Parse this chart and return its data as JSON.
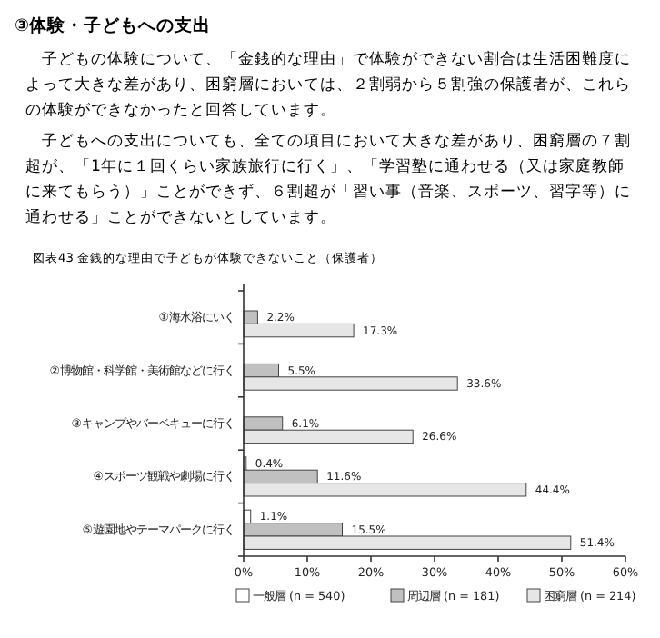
{
  "chart_data": {
    "type": "bar",
    "orientation": "horizontal",
    "title": "③体験・子どもへの支出",
    "annotations": [
      "子どもの体験について、「金銭的な理由」で体験ができない割合は生活困難度によって大きな差があり、困窮層においては、２割弱から５割強の保護者が、これらの体験ができなかったと回答しています。",
      "子どもへの支出についても、全ての項目において大きな差があり、困窮層の７割超が、「1年に１回くらい家族旅行に行く」、「学習塾に通わせる（又は家庭教師に来てもらう）」ことができず、６割超が「習い事（音楽、スポーツ、習字等）に通わせる」ことができないとしています。",
      "図表43 金銭的な理由で子どもが体験できないこと（保護者）"
    ],
    "categories": [
      "①海水浴にいく",
      "②博物館・科学館・美術館などに行く",
      "③キャンプやバーベキューに行く",
      "④スポーツ観戦や劇場に行く",
      "⑤遊園地やテーマパークに行く"
    ],
    "series": [
      {
        "name": "一般層 (n = 540)",
        "color": "#ffffff",
        "values": [
          null,
          null,
          null,
          0.4,
          1.1
        ],
        "value_labels": [
          null,
          null,
          null,
          "0.4%",
          "1.1%"
        ]
      },
      {
        "name": "周辺層 (n = 181)",
        "color": "#c0c0c0",
        "values": [
          2.2,
          5.5,
          6.1,
          11.6,
          15.5
        ],
        "value_labels": [
          "2.2%",
          "5.5%",
          "6.1%",
          "11.6%",
          "15.5%"
        ]
      },
      {
        "name": "困窮層 (n = 214)",
        "color": "#e6e6e6",
        "values": [
          17.3,
          33.6,
          26.6,
          44.4,
          51.4
        ],
        "value_labels": [
          "17.3%",
          "33.6%",
          "26.6%",
          "44.4%",
          "51.4%"
        ]
      }
    ],
    "xlim": [
      0,
      60
    ],
    "xticks": [
      {
        "value": 0,
        "label": "0%"
      },
      {
        "value": 10,
        "label": "10%"
      },
      {
        "value": 20,
        "label": "20%"
      },
      {
        "value": 30,
        "label": "30%"
      },
      {
        "value": 40,
        "label": "40%"
      },
      {
        "value": 50,
        "label": "50%"
      },
      {
        "value": 60,
        "label": "60%"
      }
    ],
    "grid": false,
    "legend": "bottom"
  }
}
